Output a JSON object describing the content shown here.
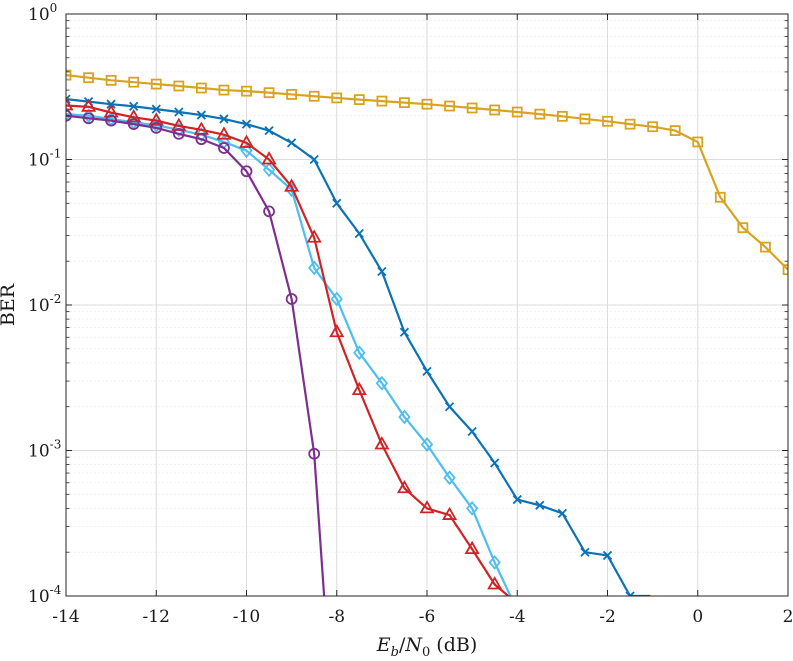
{
  "chart_data": {
    "type": "line",
    "title": "",
    "xlabel_parts": {
      "e": "E",
      "b": "b",
      "slash": "/",
      "n": "N",
      "zero": "0",
      "unit": " (dB)"
    },
    "ylabel": "BER",
    "xlim": [
      -14,
      2
    ],
    "ylim": [
      0.0001,
      1
    ],
    "yscale": "log",
    "grid": true,
    "x_ticks": [
      {
        "value": -14,
        "label": "-14"
      },
      {
        "value": -12,
        "label": "-12"
      },
      {
        "value": -10,
        "label": "-10"
      },
      {
        "value": -8,
        "label": "-8"
      },
      {
        "value": -6,
        "label": "-6"
      },
      {
        "value": -4,
        "label": "-4"
      },
      {
        "value": -2,
        "label": "-2"
      },
      {
        "value": 0,
        "label": "0"
      },
      {
        "value": 2,
        "label": "2"
      }
    ],
    "y_ticks": [
      {
        "value": 1,
        "base": "10",
        "exp": "0"
      },
      {
        "value": 0.1,
        "base": "10",
        "exp": "-1"
      },
      {
        "value": 0.01,
        "base": "10",
        "exp": "-2"
      },
      {
        "value": 0.001,
        "base": "10",
        "exp": "-3"
      },
      {
        "value": 0.0001,
        "base": "10",
        "exp": "-4"
      }
    ],
    "series": [
      {
        "marker": "square",
        "color": "#D9A322",
        "x": [
          -14,
          -13.5,
          -13,
          -12.5,
          -12,
          -11.5,
          -11,
          -10.5,
          -10,
          -9.5,
          -9,
          -8.5,
          -8,
          -7.5,
          -7,
          -6.5,
          -6,
          -5.5,
          -5,
          -4.5,
          -4,
          -3.5,
          -3,
          -2.5,
          -2,
          -1.5,
          -1,
          -0.5,
          0,
          0.5,
          1,
          1.5,
          2
        ],
        "y": [
          0.38,
          0.365,
          0.35,
          0.34,
          0.33,
          0.32,
          0.31,
          0.3,
          0.295,
          0.288,
          0.28,
          0.272,
          0.265,
          0.258,
          0.252,
          0.246,
          0.24,
          0.233,
          0.226,
          0.219,
          0.212,
          0.205,
          0.198,
          0.19,
          0.183,
          0.175,
          0.168,
          0.158,
          0.132,
          0.055,
          0.034,
          0.025,
          0.0175
        ]
      },
      {
        "marker": "x",
        "color": "#0B72B5",
        "x": [
          -14,
          -13.5,
          -13,
          -12.5,
          -12,
          -11.5,
          -11,
          -10.5,
          -10,
          -9.5,
          -9,
          -8.5,
          -8,
          -7.5,
          -7,
          -6.5,
          -6,
          -5.5,
          -5,
          -4.5,
          -4,
          -3.5,
          -3,
          -2.5,
          -2,
          -1.5,
          -1.05
        ],
        "y": [
          0.26,
          0.25,
          0.24,
          0.232,
          0.222,
          0.212,
          0.202,
          0.19,
          0.175,
          0.158,
          0.13,
          0.1,
          0.05,
          0.031,
          0.017,
          0.0065,
          0.0035,
          0.002,
          0.00135,
          0.00082,
          0.00046,
          0.00042,
          0.00037,
          0.0002,
          0.00019,
          0.0001,
          0.0001
        ]
      },
      {
        "marker": "diamond",
        "color": "#4DBEEE",
        "x": [
          -14,
          -13.5,
          -13,
          -12.5,
          -12,
          -11.5,
          -11,
          -10.5,
          -10,
          -9.5,
          -9,
          -8.5,
          -8,
          -7.5,
          -7,
          -6.5,
          -6,
          -5.5,
          -5,
          -4.5,
          -4.15
        ],
        "y": [
          0.205,
          0.2,
          0.19,
          0.18,
          0.172,
          0.16,
          0.148,
          0.132,
          0.115,
          0.085,
          0.062,
          0.018,
          0.011,
          0.0047,
          0.0029,
          0.0017,
          0.0011,
          0.00065,
          0.0004,
          0.00017,
          0.0001
        ]
      },
      {
        "marker": "triangle",
        "color": "#CF2325",
        "x": [
          -14,
          -13.5,
          -13,
          -12.5,
          -12,
          -11.5,
          -11,
          -10.5,
          -10,
          -9.5,
          -9,
          -8.5,
          -8,
          -7.5,
          -7,
          -6.5,
          -6,
          -5.5,
          -5,
          -4.5,
          -4.2
        ],
        "y": [
          0.235,
          0.23,
          0.21,
          0.195,
          0.185,
          0.17,
          0.16,
          0.148,
          0.13,
          0.1,
          0.065,
          0.029,
          0.0065,
          0.0026,
          0.0011,
          0.00055,
          0.0004,
          0.00036,
          0.00021,
          0.00012,
          0.0001
        ]
      },
      {
        "marker": "circle",
        "color": "#7E2F8E",
        "x": [
          -14,
          -13.5,
          -13,
          -12.5,
          -12,
          -11.5,
          -11,
          -10.5,
          -10,
          -9.5,
          -9,
          -8.5,
          -8.28
        ],
        "y": [
          0.2,
          0.192,
          0.185,
          0.175,
          0.165,
          0.15,
          0.138,
          0.12,
          0.083,
          0.044,
          0.011,
          0.00095,
          0.0001
        ]
      }
    ]
  }
}
